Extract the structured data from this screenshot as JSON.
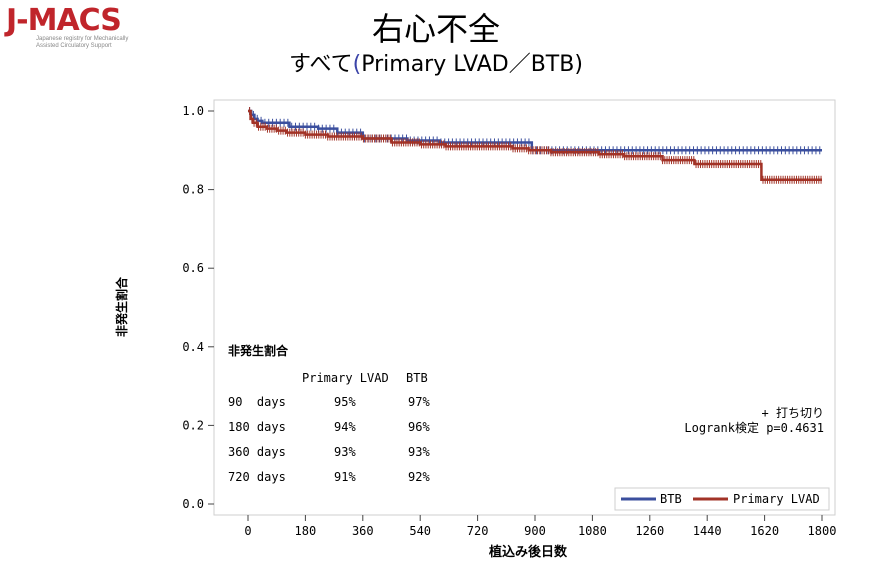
{
  "logo": {
    "text": "J-MACS",
    "subtitle": "Japanese registry for Mechanically Assisted Circulatory Support"
  },
  "title": "右心不全",
  "subtitle": {
    "prefix": "すべて",
    "open": "(",
    "main": "Primary LVAD／BTB",
    "close": ")"
  },
  "colors": {
    "BTB": "#3b4f9e",
    "Primary LVAD": "#a23327",
    "logo": "#c0252b"
  },
  "chart_data": {
    "type": "line",
    "xlabel": "植込み後日数",
    "ylabel": "非発生割合",
    "xlim": [
      0,
      1800
    ],
    "ylim": [
      0,
      1.0
    ],
    "xticks": [
      0,
      180,
      360,
      540,
      720,
      900,
      1080,
      1260,
      1440,
      1620,
      1800
    ],
    "yticks": [
      "0.0",
      "0.2",
      "0.4",
      "0.6",
      "0.8",
      "1.0"
    ],
    "series": [
      {
        "name": "BTB",
        "points": [
          [
            0,
            1.0
          ],
          [
            10,
            0.99
          ],
          [
            20,
            0.98
          ],
          [
            30,
            0.975
          ],
          [
            45,
            0.97
          ],
          [
            90,
            0.97
          ],
          [
            130,
            0.96
          ],
          [
            180,
            0.96
          ],
          [
            220,
            0.955
          ],
          [
            280,
            0.945
          ],
          [
            360,
            0.93
          ],
          [
            500,
            0.925
          ],
          [
            600,
            0.92
          ],
          [
            700,
            0.92
          ],
          [
            720,
            0.92
          ],
          [
            890,
            0.92
          ],
          [
            890,
            0.9
          ],
          [
            1800,
            0.9
          ]
        ]
      },
      {
        "name": "Primary LVAD",
        "points": [
          [
            0,
            1.0
          ],
          [
            8,
            0.98
          ],
          [
            15,
            0.97
          ],
          [
            30,
            0.96
          ],
          [
            60,
            0.955
          ],
          [
            90,
            0.95
          ],
          [
            120,
            0.945
          ],
          [
            180,
            0.94
          ],
          [
            250,
            0.935
          ],
          [
            300,
            0.935
          ],
          [
            360,
            0.93
          ],
          [
            450,
            0.92
          ],
          [
            540,
            0.915
          ],
          [
            620,
            0.91
          ],
          [
            720,
            0.91
          ],
          [
            830,
            0.905
          ],
          [
            880,
            0.9
          ],
          [
            950,
            0.895
          ],
          [
            1100,
            0.89
          ],
          [
            1180,
            0.885
          ],
          [
            1300,
            0.875
          ],
          [
            1400,
            0.875
          ],
          [
            1400,
            0.865
          ],
          [
            1610,
            0.865
          ],
          [
            1610,
            0.825
          ],
          [
            1800,
            0.825
          ]
        ]
      }
    ],
    "legend": {
      "position": "bottom-right",
      "items": [
        "BTB",
        "Primary LVAD"
      ]
    },
    "annotation": {
      "censor": "+ 打ち切り",
      "logrank": "Logrank検定 p=0.4631"
    },
    "rates_table": {
      "title": "非発生割合",
      "headers": [
        "",
        "Primary LVAD",
        "BTB"
      ],
      "rows": [
        [
          "90  days",
          "95%",
          "97%"
        ],
        [
          "180 days",
          "94%",
          "96%"
        ],
        [
          "360 days",
          "93%",
          "93%"
        ],
        [
          "720 days",
          "91%",
          "92%"
        ]
      ]
    }
  }
}
